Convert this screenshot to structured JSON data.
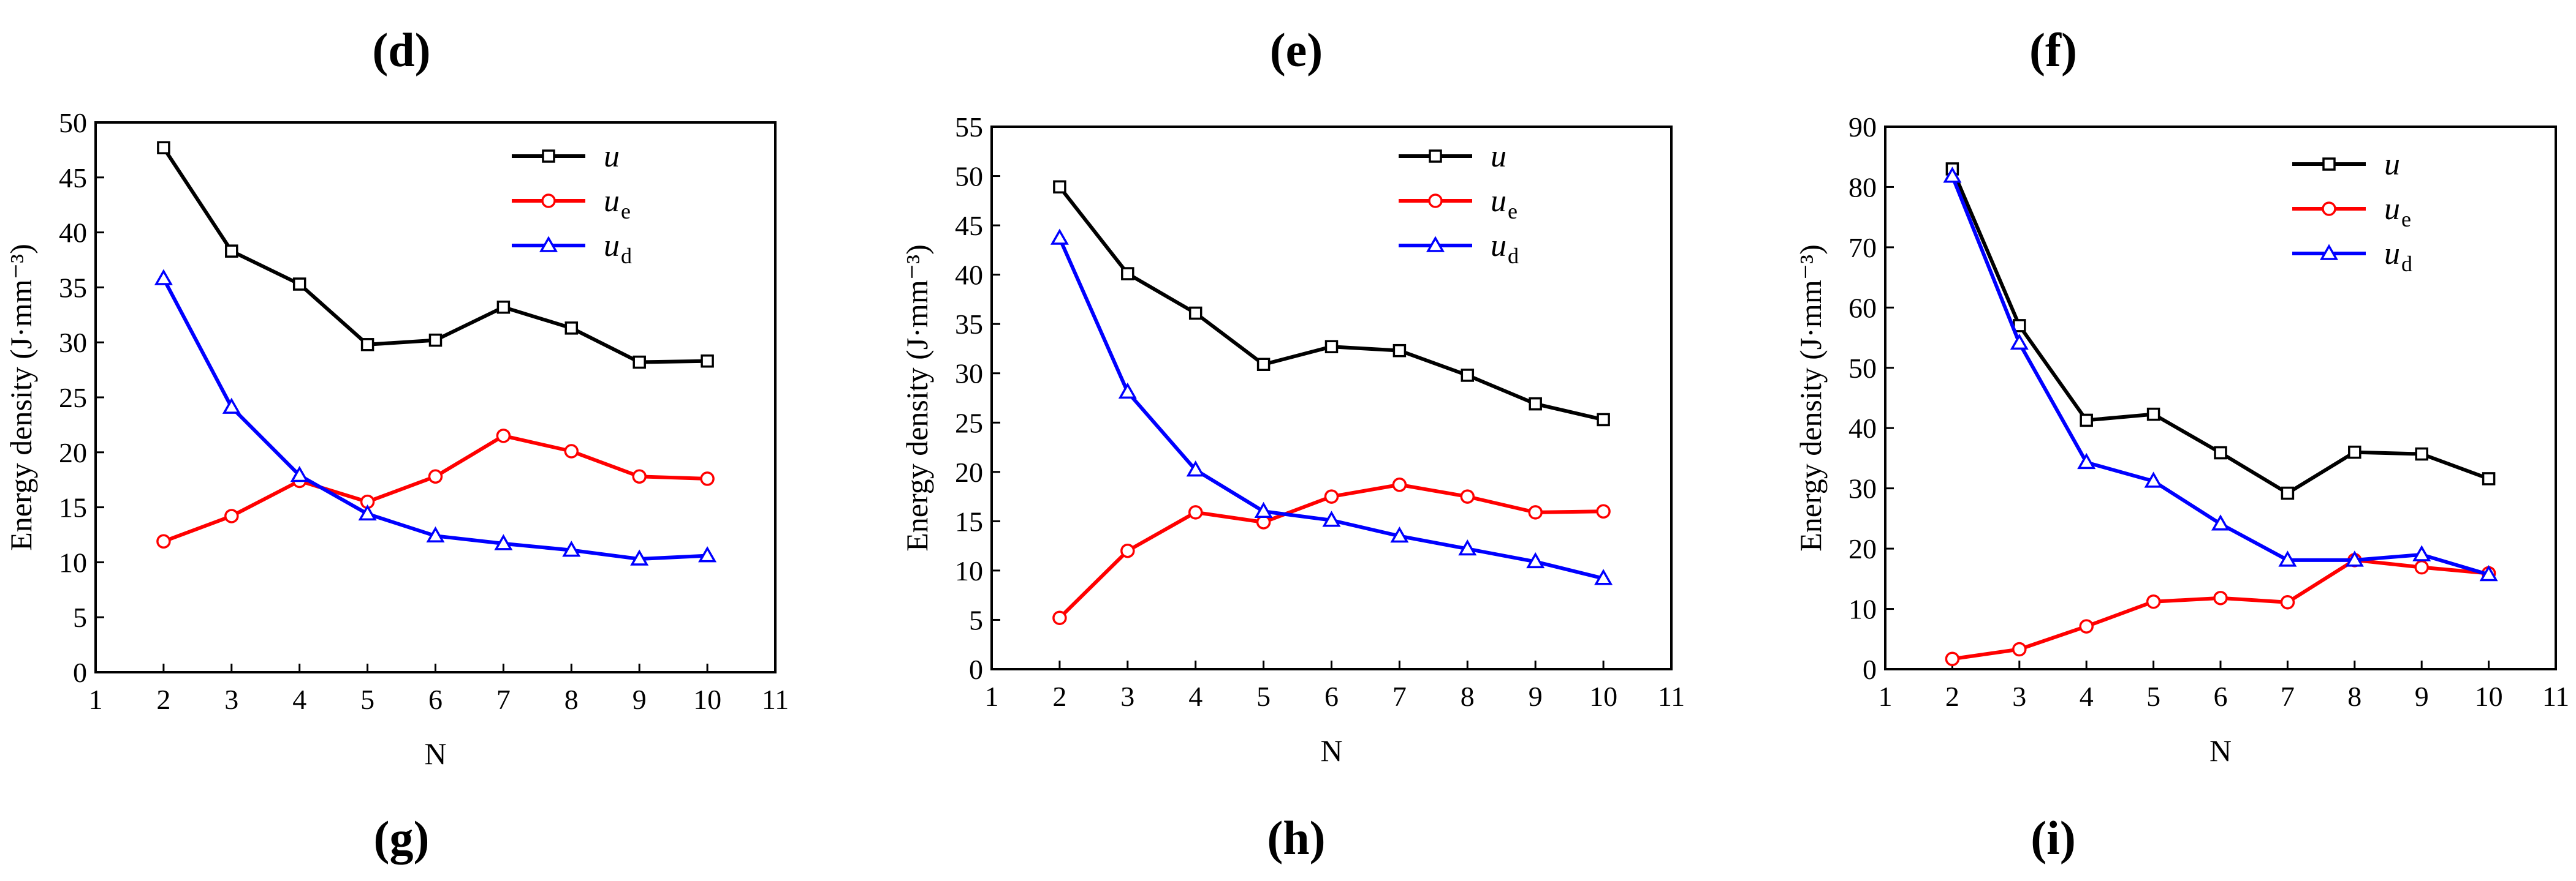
{
  "panel_labels_top": [
    "(d)",
    "(e)",
    "(f)"
  ],
  "panel_labels_bottom": [
    "(g)",
    "(h)",
    "(i)"
  ],
  "chart_data": [
    {
      "type": "line",
      "xlabel": "N",
      "ylabel": "Energy density (J·mm⁻³)",
      "xlim": [
        1,
        11
      ],
      "ylim": [
        0,
        50
      ],
      "x_ticks": [
        1,
        2,
        3,
        4,
        5,
        6,
        7,
        8,
        9,
        10,
        11
      ],
      "y_ticks": [
        0,
        5,
        10,
        15,
        20,
        25,
        30,
        35,
        40,
        45,
        50
      ],
      "x": [
        2,
        3,
        4,
        5,
        6,
        7,
        8,
        9,
        10
      ],
      "series": [
        {
          "name": "u",
          "sub": "",
          "color": "#000000",
          "marker": "square",
          "values": [
            47.7,
            38.3,
            35.3,
            29.8,
            30.2,
            33.2,
            31.3,
            28.2,
            28.3
          ]
        },
        {
          "name": "u",
          "sub": "e",
          "color": "#ff0000",
          "marker": "circle",
          "values": [
            11.9,
            14.2,
            17.4,
            15.5,
            17.8,
            21.5,
            20.1,
            17.8,
            17.6
          ]
        },
        {
          "name": "u",
          "sub": "d",
          "color": "#0000ff",
          "marker": "triangle",
          "values": [
            35.8,
            24.1,
            17.9,
            14.4,
            12.4,
            11.7,
            11.1,
            10.3,
            10.6
          ]
        }
      ]
    },
    {
      "type": "line",
      "xlabel": "N",
      "ylabel": "Energy density (J·mm⁻³)",
      "xlim": [
        1,
        11
      ],
      "ylim": [
        0,
        55
      ],
      "x_ticks": [
        1,
        2,
        3,
        4,
        5,
        6,
        7,
        8,
        9,
        10,
        11
      ],
      "y_ticks": [
        0,
        5,
        10,
        15,
        20,
        25,
        30,
        35,
        40,
        45,
        50,
        55
      ],
      "x": [
        2,
        3,
        4,
        5,
        6,
        7,
        8,
        9,
        10
      ],
      "series": [
        {
          "name": "u",
          "sub": "",
          "color": "#000000",
          "marker": "square",
          "values": [
            48.9,
            40.1,
            36.1,
            30.9,
            32.7,
            32.3,
            29.8,
            26.9,
            25.3
          ]
        },
        {
          "name": "u",
          "sub": "e",
          "color": "#ff0000",
          "marker": "circle",
          "values": [
            5.2,
            12.0,
            15.9,
            14.9,
            17.5,
            18.7,
            17.5,
            15.9,
            16.0
          ]
        },
        {
          "name": "u",
          "sub": "d",
          "color": "#0000ff",
          "marker": "triangle",
          "values": [
            43.7,
            28.1,
            20.2,
            16.0,
            15.1,
            13.5,
            12.2,
            10.9,
            9.2
          ]
        }
      ]
    },
    {
      "type": "line",
      "xlabel": "N",
      "ylabel": "Energy density (J·mm⁻³)",
      "xlim": [
        1,
        11
      ],
      "ylim": [
        0,
        90
      ],
      "x_ticks": [
        1,
        2,
        3,
        4,
        5,
        6,
        7,
        8,
        9,
        10,
        11
      ],
      "y_ticks": [
        0,
        10,
        20,
        30,
        40,
        50,
        60,
        70,
        80,
        90
      ],
      "x": [
        2,
        3,
        4,
        5,
        6,
        7,
        8,
        9,
        10
      ],
      "series": [
        {
          "name": "u",
          "sub": "",
          "color": "#000000",
          "marker": "square",
          "values": [
            83.0,
            57.0,
            41.3,
            42.3,
            35.9,
            29.2,
            36.0,
            35.7,
            31.6
          ]
        },
        {
          "name": "u",
          "sub": "e",
          "color": "#ff0000",
          "marker": "circle",
          "values": [
            1.7,
            3.3,
            7.1,
            11.2,
            11.8,
            11.1,
            18.1,
            16.9,
            15.9
          ]
        },
        {
          "name": "u",
          "sub": "d",
          "color": "#0000ff",
          "marker": "triangle",
          "values": [
            81.8,
            54.1,
            34.3,
            31.2,
            24.1,
            18.1,
            18.1,
            19.0,
            15.7
          ]
        }
      ]
    }
  ]
}
